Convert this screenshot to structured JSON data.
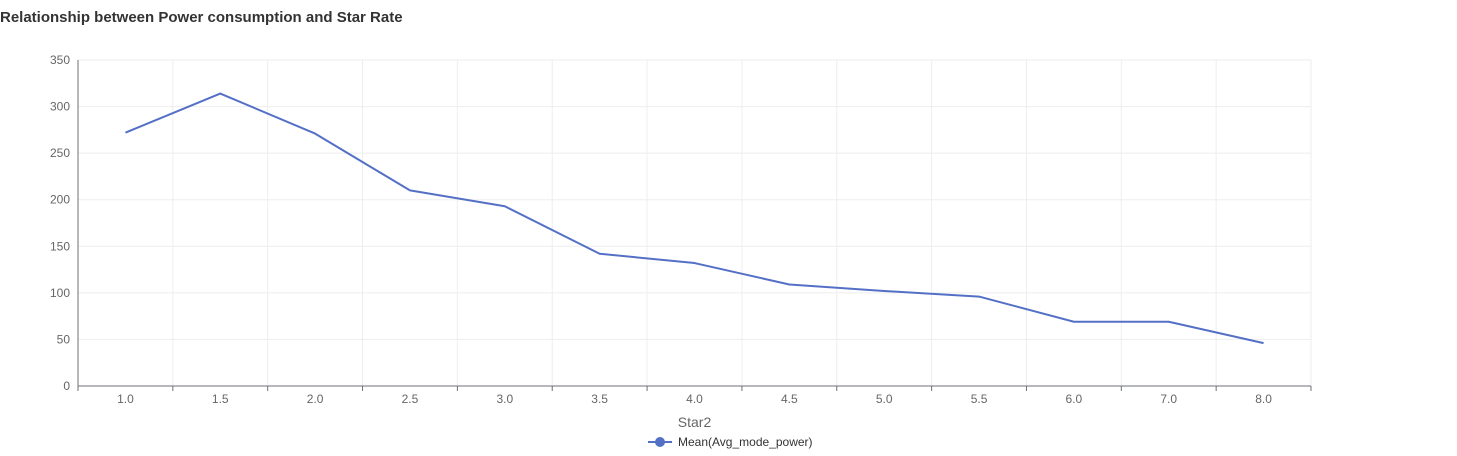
{
  "chart_data": {
    "type": "line",
    "title": "Relationship between Power consumption and Star Rate",
    "xlabel": "Star2",
    "ylabel": "",
    "categories": [
      "1.0",
      "1.5",
      "2.0",
      "2.5",
      "3.0",
      "3.5",
      "4.0",
      "4.5",
      "5.0",
      "5.5",
      "6.0",
      "7.0",
      "8.0"
    ],
    "series": [
      {
        "name": "Mean(Avg_mode_power)",
        "values": [
          272,
          314,
          271,
          210,
          193,
          142,
          132,
          109,
          102,
          96,
          69,
          69,
          46
        ],
        "color": "#5470c6"
      }
    ],
    "ylim": [
      0,
      350
    ],
    "yticks": [
      0,
      50,
      100,
      150,
      200,
      250,
      300,
      350
    ],
    "grid": true,
    "legend_position": "bottom-center"
  }
}
